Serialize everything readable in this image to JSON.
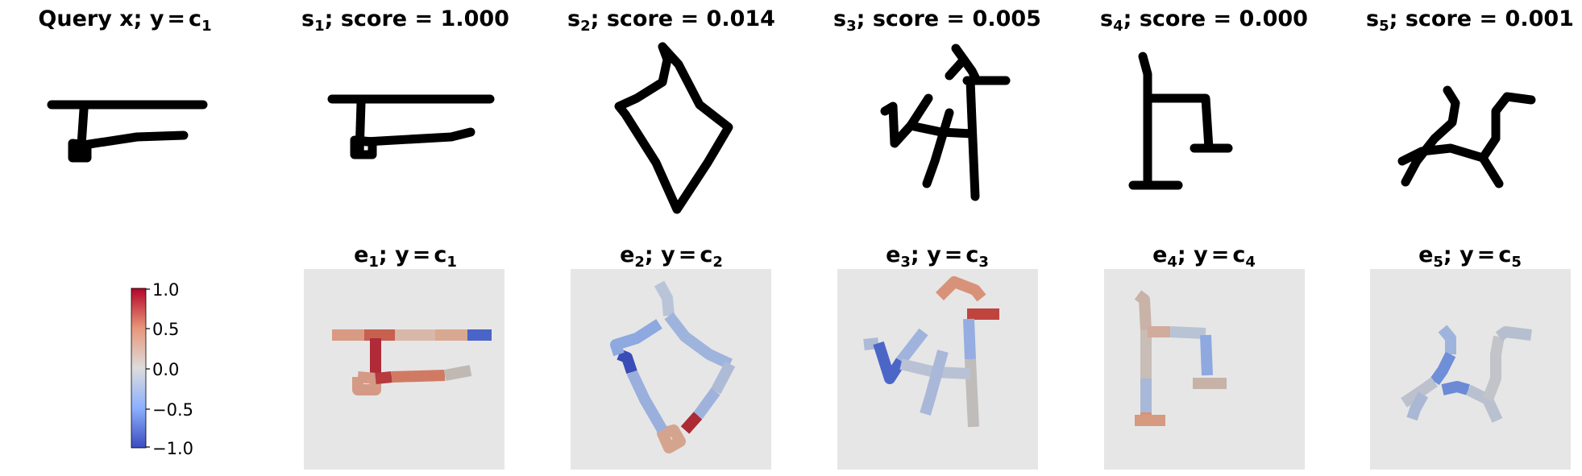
{
  "query": {
    "title_main": "Query x; y",
    "title_eq": "=",
    "title_c": "c",
    "title_sub": "1"
  },
  "supports": [
    {
      "s": "s",
      "sub": "1",
      "rest": "; score = 1.000",
      "score": 1.0
    },
    {
      "s": "s",
      "sub": "2",
      "rest": "; score = 0.014",
      "score": 0.014
    },
    {
      "s": "s",
      "sub": "3",
      "rest": "; score = 0.005",
      "score": 0.005
    },
    {
      "s": "s",
      "sub": "4",
      "rest": "; score = 0.000",
      "score": 0.0
    },
    {
      "s": "s",
      "sub": "5",
      "rest": "; score = 0.001",
      "score": 0.001
    }
  ],
  "explanations": [
    {
      "e": "e",
      "sub": "1",
      "mid": "; y",
      "eq": "=",
      "c": "c",
      "csub": "1"
    },
    {
      "e": "e",
      "sub": "2",
      "mid": "; y",
      "eq": "=",
      "c": "c",
      "csub": "2"
    },
    {
      "e": "e",
      "sub": "3",
      "mid": "; y",
      "eq": "=",
      "c": "c",
      "csub": "3"
    },
    {
      "e": "e",
      "sub": "4",
      "mid": "; y",
      "eq": "=",
      "c": "c",
      "csub": "4"
    },
    {
      "e": "e",
      "sub": "5",
      "mid": "; y",
      "eq": "=",
      "c": "c",
      "csub": "5"
    }
  ],
  "colorbar": {
    "ticks": [
      "1.0",
      "0.5",
      "0.0",
      "−0.5",
      "−1.0"
    ],
    "colors": {
      "top": "#b40426",
      "upper": "#e7977a",
      "mid": "#dddcdc",
      "lower": "#8db0fe",
      "bottom": "#3b4cc0"
    }
  },
  "heatmap_background": "#e6e6e6"
}
